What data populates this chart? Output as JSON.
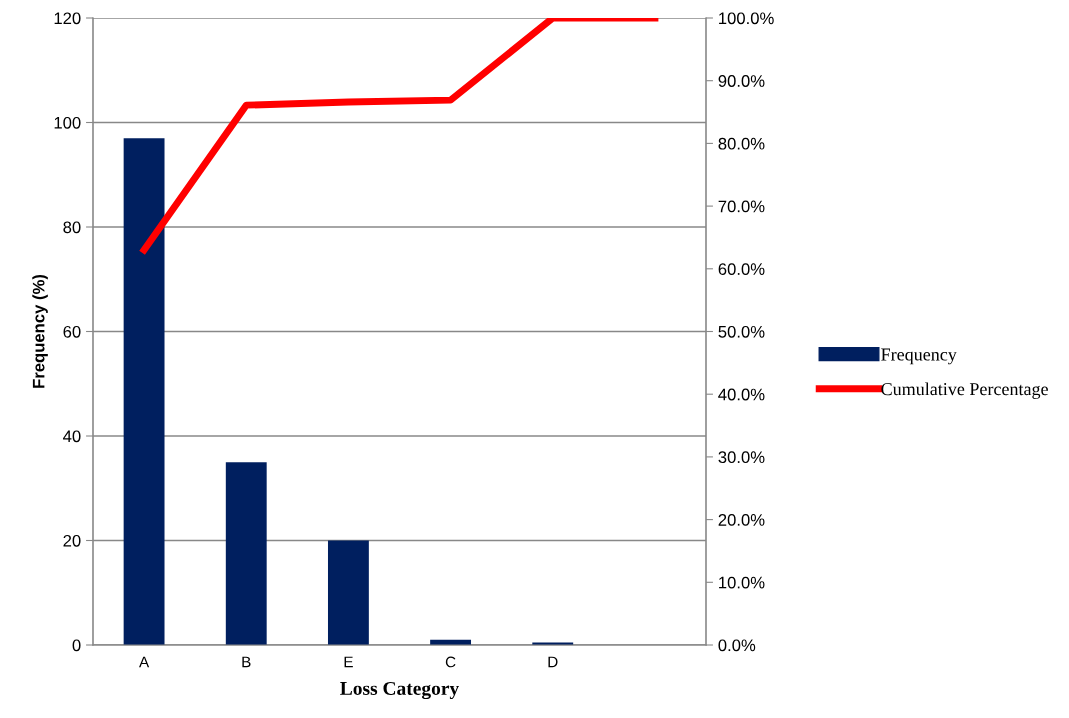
{
  "chart_data": {
    "type": "bar",
    "xlabel": "Loss Category",
    "ylabel": "Frequency (%)",
    "categories": [
      "A",
      "B",
      "E",
      "C",
      "D",
      null
    ],
    "series": [
      {
        "name": "Frequency",
        "color": "#001f5f",
        "values": [
          97,
          35,
          20,
          1,
          0.5,
          null
        ]
      },
      {
        "name": "Cumulative Percentage",
        "type": "line",
        "axis": "y2",
        "color": "#ff0000",
        "values": [
          63,
          86.1,
          86.6,
          86.9,
          100,
          100
        ]
      }
    ],
    "ylim": [
      0,
      120
    ],
    "yticks": [
      0,
      20,
      40,
      60,
      80,
      100,
      120
    ],
    "y2lim": [
      0,
      100
    ],
    "y2ticks": [
      {
        "value": 0,
        "label": "0.0%"
      },
      {
        "value": 10,
        "label": "10.0%"
      },
      {
        "value": 20,
        "label": "20.0%"
      },
      {
        "value": 30,
        "label": "30.0%"
      },
      {
        "value": 40,
        "label": "40.0%"
      },
      {
        "value": 50,
        "label": "50.0%"
      },
      {
        "value": 60,
        "label": "60.0%"
      },
      {
        "value": 70,
        "label": "70.0%"
      },
      {
        "value": 80,
        "label": "80.0%"
      },
      {
        "value": 90,
        "label": "90.0%"
      },
      {
        "value": 100,
        "label": "100.0%"
      }
    ],
    "grid": "y",
    "legend": "right",
    "marker": "none",
    "line_style": "solid"
  }
}
